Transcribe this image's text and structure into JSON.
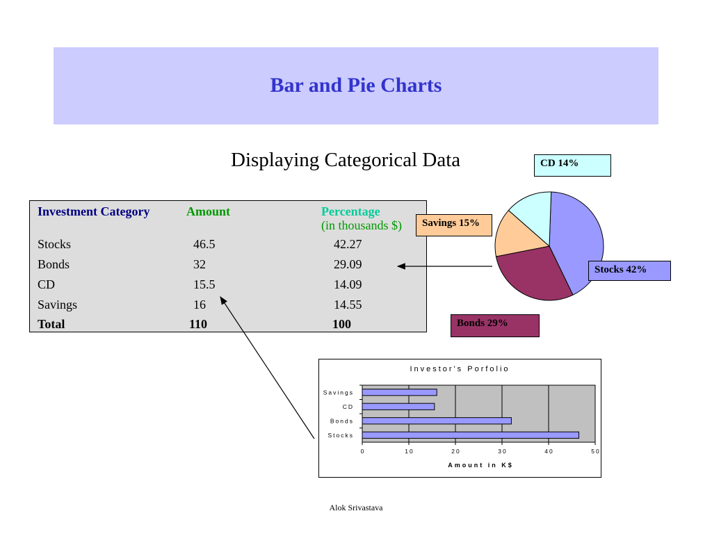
{
  "slide": {
    "title": "Bar and Pie Charts",
    "subtitle": "Displaying Categorical Data",
    "footer": "Alok Srivastava"
  },
  "colors": {
    "banner": "#ccccff",
    "title": "#3333cc",
    "header_category": "#000080",
    "header_amount": "#009900",
    "header_percentage": "#00cc99",
    "table_bg": "#dddddd",
    "stocks": "#9999ff",
    "bonds": "#993366",
    "savings": "#ffcc99",
    "cd": "#ccffff",
    "bar_fill": "#9999ff",
    "plot_bg": "#c0c0c0"
  },
  "table": {
    "headers": {
      "category": "Investment Category",
      "amount": "Amount",
      "percentage": "Percentage",
      "units": "(in thousands $)"
    },
    "rows": [
      {
        "category": "Stocks",
        "amount": "46.5",
        "percentage": "42.27"
      },
      {
        "category": "Bonds",
        "amount": "32",
        "percentage": "29.09"
      },
      {
        "category": "CD",
        "amount": "15.5",
        "percentage": "14.09"
      },
      {
        "category": "Savings",
        "amount": "16",
        "percentage": "14.55"
      }
    ],
    "total": {
      "category": "Total",
      "amount": "110",
      "percentage": "100"
    }
  },
  "pie_labels": {
    "cd": "CD 14%",
    "savings": "Savings 15%",
    "stocks": "Stocks 42%",
    "bonds": "Bonds 29%"
  },
  "chart_data": [
    {
      "type": "pie",
      "slices": [
        {
          "name": "Stocks",
          "value": 42.27
        },
        {
          "name": "Bonds",
          "value": 29.09
        },
        {
          "name": "Savings",
          "value": 14.55
        },
        {
          "name": "CD",
          "value": 14.09
        }
      ]
    },
    {
      "type": "bar",
      "orientation": "horizontal",
      "title": "Investor's Porfolio",
      "xlabel": "Amount in K$",
      "ylabel": "",
      "categories": [
        "Savings",
        "CD",
        "Bonds",
        "Stocks"
      ],
      "values": [
        16,
        15.5,
        32,
        46.5
      ],
      "xlim": [
        0,
        50
      ],
      "xticks": [
        0,
        10,
        20,
        30,
        40,
        50
      ],
      "grid": true
    }
  ]
}
